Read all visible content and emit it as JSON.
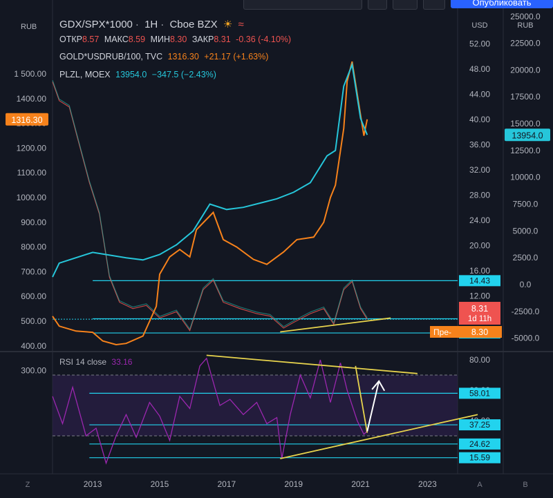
{
  "header": {
    "symbol": "GDX/SPX*1000",
    "interval": "1H",
    "exchange": "Cboe BZX",
    "ohlc": {
      "o_label": "ОТКР",
      "o": "8.57",
      "h_label": "МАКС",
      "h": "8.59",
      "l_label": "МИН",
      "l": "8.30",
      "c_label": "ЗАКР",
      "c": "8.31",
      "change": "-0.36 (-4.10%)"
    },
    "top_button_label": "Опубликовать"
  },
  "legend": [
    {
      "name": "GOLD*USDRUB/100, TVC",
      "value": "1316.30",
      "change": "+21.17 (+1.63%)",
      "color": "#f7821b"
    },
    {
      "name": "PLZL, MOEX",
      "value": "13954.0",
      "change": "−347.5 (−2.43%)",
      "color": "#26c6da"
    }
  ],
  "colors": {
    "gold": "#f7821b",
    "plzl": "#26c6da",
    "rsi": "#9c27b0",
    "ratio_up": "#26a69a",
    "ratio_down": "#ef5350",
    "trend": "#e8d44d",
    "hline": "#22d3ee"
  },
  "scales": {
    "left_unit": "RUB",
    "left_ticks": [
      "1 500.00",
      "1400.00",
      "1300.00",
      "1200.00",
      "1100.00",
      "1000.00",
      "900.00",
      "800.00",
      "700.00",
      "600.00",
      "500.00",
      "400.00",
      "300.00"
    ],
    "left_tick_values": [
      1500,
      1400,
      1300,
      1200,
      1100,
      1000,
      900,
      800,
      700,
      600,
      500,
      400,
      300
    ],
    "usd_unit": "USD",
    "usd_ticks": [
      "52.00",
      "48.00",
      "44.00",
      "40.00",
      "36.00",
      "32.00",
      "28.00",
      "24.00",
      "20.00",
      "16.00",
      "12.00",
      "8.00"
    ],
    "usd_tick_values": [
      52,
      48,
      44,
      40,
      36,
      32,
      28,
      24,
      20,
      16,
      12,
      8
    ],
    "rub_unit": "RUB",
    "rub_ticks": [
      "25000.0",
      "22500.0",
      "20000.0",
      "17500.0",
      "15000.0",
      "12500.0",
      "10000.0",
      "7500.0",
      "5000.0",
      "2500.0",
      "0.0",
      "-2500.0",
      "-5000.0"
    ],
    "rub_tick_values": [
      25000,
      22500,
      20000,
      17500,
      15000,
      12500,
      10000,
      7500,
      5000,
      2500,
      0,
      -2500,
      -5000
    ],
    "rsi_ticks": [
      "80.00",
      "60.00",
      "40.00"
    ],
    "rsi_tick_values": [
      80,
      60,
      40
    ],
    "x_ticks": [
      "2013",
      "2015",
      "2017",
      "2019",
      "2021",
      "2023"
    ],
    "x_tick_values": [
      2013,
      2015,
      2017,
      2019,
      2021,
      2023
    ]
  },
  "badges": {
    "gold_last": "1316.30",
    "plzl_last": "13954.0",
    "ratio_last": "8.31",
    "ratio_countdown": "1d 11h",
    "pre_label": "Пре-",
    "pre_value": "8.30",
    "levels": [
      "14.43",
      "8.38",
      "6.13"
    ],
    "level_values": [
      14.43,
      8.38,
      6.13
    ]
  },
  "rsi": {
    "title": "RSI 14 close",
    "value": "33.16",
    "levels": [
      "58.01",
      "37.25",
      "24.62",
      "15.59"
    ],
    "level_values": [
      58.01,
      37.25,
      24.62,
      15.59
    ],
    "band": [
      70,
      30
    ]
  },
  "bottom_left_button": "Z",
  "bottom_right_buttons": [
    "A",
    "B"
  ],
  "chart_data": {
    "type": "line",
    "series": [
      {
        "name": "GOLD*USDRUB/100, TVC",
        "axis": "RUB",
        "x": [
          2011.8,
          2012.0,
          2012.5,
          2013.0,
          2013.3,
          2013.7,
          2014.0,
          2014.5,
          2014.9,
          2015.0,
          2015.3,
          2015.6,
          2015.9,
          2016.1,
          2016.6,
          2016.9,
          2017.3,
          2017.8,
          2018.2,
          2018.7,
          2019.1,
          2019.6,
          2019.9,
          2020.1,
          2020.25,
          2020.5,
          2020.6,
          2020.75,
          2020.9,
          2021.1,
          2021.2
        ],
        "y": [
          520,
          480,
          460,
          455,
          420,
          405,
          410,
          440,
          560,
          690,
          760,
          790,
          760,
          870,
          940,
          830,
          800,
          750,
          730,
          780,
          830,
          840,
          900,
          1000,
          1050,
          1280,
          1470,
          1550,
          1420,
          1250,
          1316.3
        ]
      },
      {
        "name": "PLZL, MOEX",
        "axis": "RUB",
        "x": [
          2011.8,
          2012.0,
          2013.0,
          2014.0,
          2014.5,
          2015.0,
          2015.5,
          2016.0,
          2016.5,
          2017.0,
          2017.5,
          2018.0,
          2018.5,
          2019.0,
          2019.5,
          2020.0,
          2020.25,
          2020.5,
          2020.75,
          2021.0,
          2021.2
        ],
        "y": [
          700,
          2000,
          3000,
          2500,
          2300,
          2800,
          3700,
          5000,
          7500,
          7000,
          7200,
          7600,
          8000,
          8600,
          9500,
          12000,
          12500,
          18500,
          20500,
          15500,
          13954
        ]
      },
      {
        "name": "GDX/SPX*1000",
        "axis": "USD",
        "x": [
          2011.8,
          2012.0,
          2012.3,
          2012.6,
          2012.9,
          2013.2,
          2013.5,
          2013.8,
          2014.2,
          2014.6,
          2015.0,
          2015.5,
          2015.9,
          2016.3,
          2016.6,
          2016.9,
          2017.4,
          2017.9,
          2018.3,
          2018.7,
          2019.0,
          2019.5,
          2019.9,
          2020.2,
          2020.5,
          2020.75,
          2021.0,
          2021.2
        ],
        "y": [
          46,
          43,
          42,
          36,
          30,
          25,
          15,
          11,
          10,
          10.5,
          8.5,
          9.5,
          6.5,
          13,
          14.5,
          11,
          10,
          9.2,
          8.8,
          6.9,
          7.8,
          9.2,
          10,
          7.5,
          13,
          14.3,
          10,
          8.31
        ]
      }
    ],
    "rsi_series": {
      "name": "RSI 14 close",
      "x": [
        2011.8,
        2012.1,
        2012.4,
        2012.8,
        2013.1,
        2013.4,
        2013.7,
        2014.0,
        2014.3,
        2014.7,
        2015.0,
        2015.3,
        2015.6,
        2015.9,
        2016.2,
        2016.4,
        2016.8,
        2017.1,
        2017.5,
        2017.9,
        2018.2,
        2018.5,
        2018.65,
        2018.9,
        2019.2,
        2019.5,
        2019.8,
        2020.1,
        2020.4,
        2020.6,
        2020.9,
        2021.1,
        2021.2
      ],
      "y": [
        56,
        38,
        62,
        30,
        35,
        12,
        30,
        44,
        29,
        52,
        43,
        27,
        56,
        48,
        76,
        81,
        50,
        54,
        44,
        52,
        38,
        42,
        15,
        44,
        70,
        55,
        80,
        52,
        78,
        60,
        40,
        31,
        33.16
      ]
    },
    "trendlines": [
      {
        "pane": "rsi",
        "x": [
          2016.4,
          2022.7
        ],
        "y": [
          83,
          71
        ]
      },
      {
        "pane": "rsi",
        "x": [
          2018.6,
          2024.5
        ],
        "y": [
          15,
          44
        ]
      },
      {
        "pane": "rsi",
        "x": [
          2020.85,
          2021.2
        ],
        "y": [
          76,
          32
        ]
      },
      {
        "pane": "price",
        "x": [
          2018.6,
          2021.9
        ],
        "y": [
          6.3,
          8.5
        ]
      }
    ],
    "arrow": {
      "pane": "rsi",
      "x": [
        2021.2,
        2021.55
      ],
      "y": [
        33,
        66
      ]
    },
    "ylim_price_usd": [
      3.8,
      54
    ],
    "ylim_rsi": [
      5,
      85
    ]
  }
}
